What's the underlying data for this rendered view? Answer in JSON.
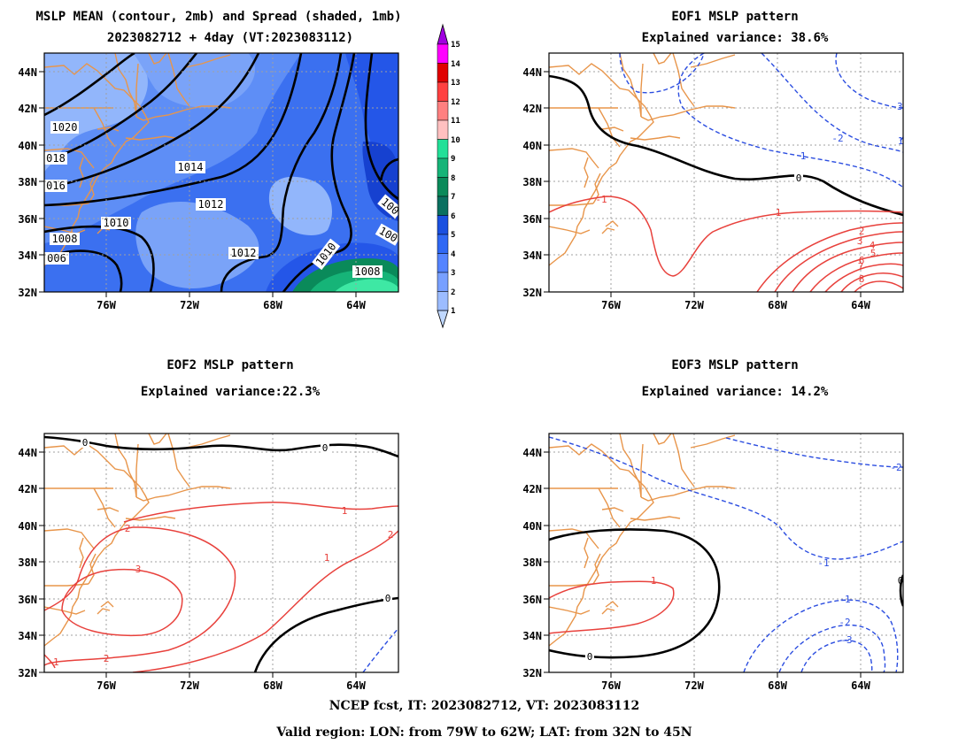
{
  "colors": {
    "coast": "#e8954a",
    "positive_contour": "#e8413c",
    "negative_contour": "#2b4de0",
    "zero_contour": "#000000",
    "spread_fill": [
      "#c0d8ff",
      "#9cbcff",
      "#78a0ff",
      "#5484ff",
      "#2f68f4",
      "#1a50e0",
      "#0a8a5a",
      "#16b478",
      "#22e098",
      "#ffc0c0",
      "#ff8080",
      "#ff4040",
      "#e00000",
      "#ff00ff",
      "#a000e0"
    ]
  },
  "panels": [
    {
      "id": "mean",
      "title_line1": "MSLP MEAN (contour, 2mb) and Spread (shaded, 1mb)",
      "title_line2": "2023082712 + 4day (VT:2023083112)",
      "contour_labels": [
        "1020",
        "018",
        "016",
        "1014",
        "1012",
        "1010",
        "1008",
        "006",
        "1012",
        "1010",
        "1008",
        "100",
        "100"
      ]
    },
    {
      "id": "eof1",
      "title_line1": "EOF1 MSLP pattern",
      "title_line2": "Explained variance: 38.6%",
      "contour_labels": [
        "0",
        "1",
        "-1",
        "-2",
        "-3",
        "1",
        "2",
        "3",
        "4",
        "5",
        "6",
        "7",
        "8",
        "1"
      ]
    },
    {
      "id": "eof2",
      "title_line1": "EOF2 MSLP pattern",
      "title_line2": "Explained variance:22.3%",
      "contour_labels": [
        "0",
        "0",
        "1",
        "2",
        "3",
        "1",
        "2",
        "2",
        "-1",
        "0"
      ]
    },
    {
      "id": "eof3",
      "title_line1": "EOF3 MSLP pattern",
      "title_line2": "Explained variance: 14.2%",
      "contour_labels": [
        "-2",
        "-1",
        "1",
        "0",
        "-1",
        "-2",
        "-3",
        "0"
      ]
    }
  ],
  "axes": {
    "lat_labels": [
      "44N",
      "42N",
      "40N",
      "38N",
      "36N",
      "34N",
      "32N"
    ],
    "lon_labels": [
      "76W",
      "72W",
      "68W",
      "64W"
    ]
  },
  "colorbar": {
    "labels": [
      "15",
      "14",
      "13",
      "12",
      "11",
      "10",
      "9",
      "8",
      "7",
      "6",
      "5",
      "4",
      "3",
      "2",
      "1"
    ]
  },
  "footer": {
    "line1": "NCEP fcst, IT: 2023082712, VT: 2023083112",
    "line2": "Valid region: LON: from 79W to 62W; LAT: from 32N to 45N"
  }
}
